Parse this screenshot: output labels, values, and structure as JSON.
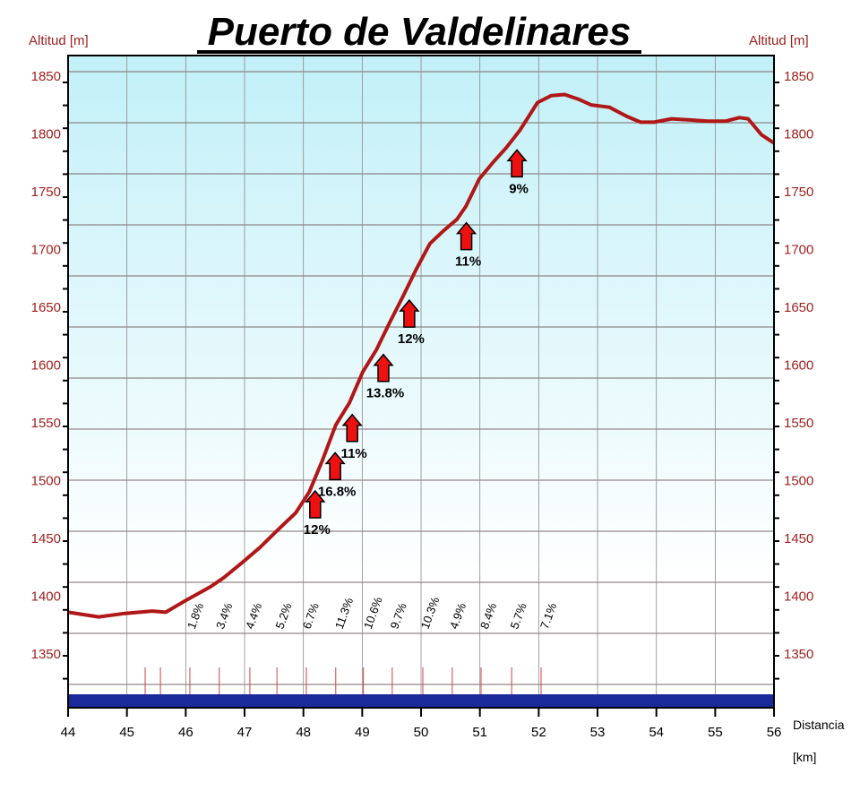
{
  "chart_data": {
    "type": "line",
    "title": "Puerto de Valdelinares",
    "ylabel_left": "Altitud [m]",
    "ylabel_right": "Altitud [m]",
    "xlabel": "Distancia",
    "xunit": "[km]",
    "xlim": [
      44,
      56
    ],
    "ylim": [
      1310,
      1865
    ],
    "x_ticks": [
      "44",
      "45",
      "46",
      "47",
      "48",
      "49",
      "50",
      "51",
      "52",
      "53",
      "54",
      "55",
      "56"
    ],
    "y_ticks": [
      "1850",
      "1800",
      "1750",
      "1700",
      "1650",
      "1600",
      "1550",
      "1500",
      "1450",
      "1400",
      "1350"
    ],
    "grid": true,
    "series": [
      {
        "name": "altitude",
        "color": "#b01818",
        "x": [
          44.0,
          44.52,
          44.97,
          45.43,
          45.66,
          45.96,
          46.42,
          46.65,
          46.96,
          47.26,
          47.56,
          47.87,
          48.1,
          48.32,
          48.55,
          48.78,
          49.01,
          49.24,
          49.47,
          49.7,
          49.92,
          50.15,
          50.38,
          50.61,
          50.76,
          50.99,
          51.22,
          51.45,
          51.68,
          51.98,
          52.21,
          52.44,
          52.67,
          52.89,
          53.2,
          53.5,
          53.73,
          53.96,
          54.26,
          54.57,
          54.87,
          55.18,
          55.41,
          55.56,
          55.79,
          56.0
        ],
        "y": [
          1390,
          1386,
          1389,
          1391,
          1390,
          1399,
          1412,
          1420,
          1433,
          1446,
          1461,
          1476,
          1494,
          1521,
          1552,
          1571,
          1598,
          1617,
          1641,
          1664,
          1687,
          1709,
          1720,
          1730,
          1741,
          1765,
          1779,
          1792,
          1807,
          1831,
          1837,
          1838,
          1834,
          1829,
          1827,
          1819,
          1814,
          1814,
          1817,
          1816,
          1815,
          1815,
          1818,
          1817,
          1803,
          1796
        ]
      }
    ],
    "gradient_arrows": [
      {
        "x": 48.2,
        "y": 1495,
        "label": "12%"
      },
      {
        "x": 48.54,
        "y": 1528,
        "label": "16.8%"
      },
      {
        "x": 48.83,
        "y": 1561,
        "label": "11%"
      },
      {
        "x": 49.36,
        "y": 1613,
        "label": "13.8%"
      },
      {
        "x": 49.8,
        "y": 1660,
        "label": "12%"
      },
      {
        "x": 50.77,
        "y": 1727,
        "label": "11%"
      },
      {
        "x": 51.63,
        "y": 1790,
        "label": "9%"
      }
    ],
    "segment_grades": [
      {
        "x": 46.09,
        "label": "1.8%"
      },
      {
        "x": 46.58,
        "label": "3.4%"
      },
      {
        "x": 47.08,
        "label": "4.4%"
      },
      {
        "x": 47.59,
        "label": "5.2%"
      },
      {
        "x": 48.05,
        "label": "6.7%"
      },
      {
        "x": 48.6,
        "label": "11.3%"
      },
      {
        "x": 49.09,
        "label": "10.6%"
      },
      {
        "x": 49.54,
        "label": "9.7%"
      },
      {
        "x": 50.06,
        "label": "10.3%"
      },
      {
        "x": 50.55,
        "label": "4.9%"
      },
      {
        "x": 51.07,
        "label": "8.4%"
      },
      {
        "x": 51.58,
        "label": "5.7%"
      },
      {
        "x": 52.09,
        "label": "7.1%"
      }
    ],
    "km_markers": [
      45.31,
      45.57,
      46.07,
      46.57,
      47.09,
      47.55,
      48.05,
      48.55,
      49.02,
      49.51,
      50.03,
      50.53,
      51.02,
      51.54,
      52.04
    ],
    "colors": {
      "line": "#b01818",
      "axis_text": "#a02020",
      "arrow": "#ee1111",
      "road_bar": "#1a2a9a",
      "sky": "#c2f0f8"
    }
  }
}
